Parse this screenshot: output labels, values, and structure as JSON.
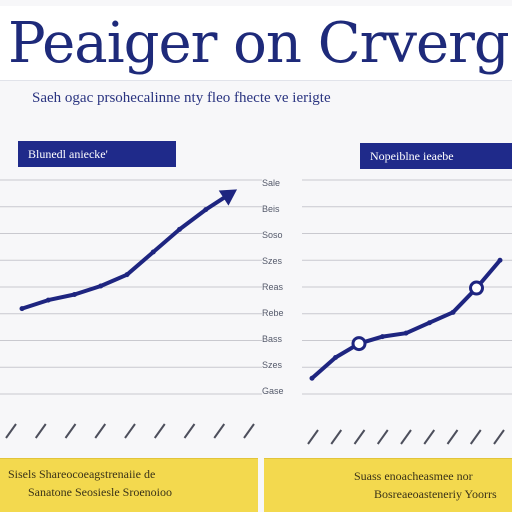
{
  "title": "Peaiger on Crverge PIR",
  "subtitle": "Saeh ogac prsohecalinne nty fleo fhecte ve ierigte",
  "panels": [
    {
      "label": "Blunedl aniecke'"
    },
    {
      "label": "Nopeiblne ieaebe"
    }
  ],
  "y_ticks": [
    "Sale",
    "Beis",
    "Soso",
    "Szes",
    "Reas",
    "Rebe",
    "Bass",
    "Szes",
    "Gase"
  ],
  "footers": [
    {
      "line1": "Sisels Shareocoeagstrenaiie de",
      "line2": "Sanatone Seosiesle Sroenoioo"
    },
    {
      "line1": "Suass enoacheasmee nor",
      "line2": "Bosreaeoasteneriy Yoorrs"
    }
  ],
  "colors": {
    "line": "#1e2580",
    "panel_label": "#1f2a8a",
    "footer": "#f3d94e",
    "grid": "#c9c9cf"
  },
  "chart_data": [
    {
      "type": "line",
      "x": [
        0,
        1,
        2,
        3,
        4,
        5,
        6,
        7,
        8
      ],
      "series": [
        {
          "values": [
            2.1,
            2.4,
            2.6,
            2.9,
            3.3,
            4.1,
            4.9,
            5.6,
            6.2
          ]
        }
      ],
      "ylim": [
        0,
        7
      ],
      "grid": true,
      "end_marker": "arrow"
    },
    {
      "type": "line",
      "x": [
        0,
        1,
        2,
        3,
        4,
        5,
        6,
        7,
        8
      ],
      "series": [
        {
          "values": [
            1.0,
            1.6,
            2.0,
            2.2,
            2.3,
            2.6,
            2.9,
            3.6,
            4.4
          ]
        }
      ],
      "ylim": [
        0,
        7
      ],
      "grid": true,
      "markers": "circle"
    }
  ]
}
